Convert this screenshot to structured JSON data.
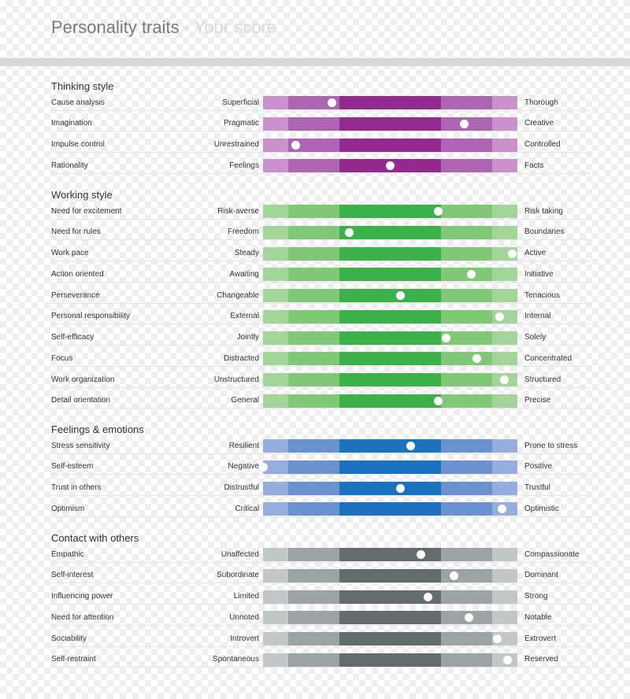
{
  "header": {
    "title": "Personality traits",
    "separator": " - ",
    "subtitle": "Your score"
  },
  "chart_data": {
    "type": "bar",
    "scale_range": [
      0,
      100
    ],
    "band_breaks": [
      0,
      10,
      30,
      70,
      90,
      100
    ],
    "sections": [
      {
        "title": "Thinking style",
        "colors": [
          "#c992cd",
          "#ad64b2",
          "#94298f",
          "#ad64b2",
          "#c992cd"
        ],
        "traits": [
          {
            "name": "Cause analysis",
            "low": "Superficial",
            "high": "Thorough",
            "value": 27
          },
          {
            "name": "Imagination",
            "low": "Pragmatic",
            "high": "Creative",
            "value": 79
          },
          {
            "name": "Impulse control",
            "low": "Unrestrained",
            "high": "Controlled",
            "value": 13
          },
          {
            "name": "Rationality",
            "low": "Feelings",
            "high": "Facts",
            "value": 50
          }
        ]
      },
      {
        "title": "Working style",
        "colors": [
          "#a3d59a",
          "#80c878",
          "#3cb14a",
          "#80c878",
          "#a3d59a"
        ],
        "traits": [
          {
            "name": "Need for excitement",
            "low": "Risk-averse",
            "high": "Risk taking",
            "value": 69
          },
          {
            "name": "Need for rules",
            "low": "Freedom",
            "high": "Boundaries",
            "value": 34
          },
          {
            "name": "Work pace",
            "low": "Steady",
            "high": "Active",
            "value": 98
          },
          {
            "name": "Action oriented",
            "low": "Awaiting",
            "high": "Initiative",
            "value": 82
          },
          {
            "name": "Perseverance",
            "low": "Changeable",
            "high": "Tenacious",
            "value": 54
          },
          {
            "name": "Personal responsibility",
            "low": "External",
            "high": "Internal",
            "value": 93
          },
          {
            "name": "Self-efficacy",
            "low": "Jointly",
            "high": "Solely",
            "value": 72
          },
          {
            "name": "Focus",
            "low": "Distracted",
            "high": "Concentrated",
            "value": 84
          },
          {
            "name": "Work organization",
            "low": "Unstructured",
            "high": "Structured",
            "value": 95
          },
          {
            "name": "Detail orientation",
            "low": "General",
            "high": "Precise",
            "value": 69
          }
        ]
      },
      {
        "title": "Feelings & emotions",
        "colors": [
          "#95aedd",
          "#6a91d0",
          "#1b72bf",
          "#6a91d0",
          "#95aedd"
        ],
        "traits": [
          {
            "name": "Stress sensitivity",
            "low": "Resilient",
            "high": "Prone to stress",
            "value": 58
          },
          {
            "name": "Self-esteem",
            "low": "Negative",
            "high": "Positive",
            "value": 0
          },
          {
            "name": "Trust in others",
            "low": "Distrustful",
            "high": "Trustful",
            "value": 54
          },
          {
            "name": "Optimism",
            "low": "Critical",
            "high": "Optimistic",
            "value": 94
          }
        ]
      },
      {
        "title": "Contact with others",
        "colors": [
          "#c2c7c8",
          "#9ba3a4",
          "#636c6d",
          "#9ba3a4",
          "#c2c7c8"
        ],
        "traits": [
          {
            "name": "Empathic",
            "low": "Unaffected",
            "high": "Compassionate",
            "value": 62
          },
          {
            "name": "Self-interest",
            "low": "Subordinate",
            "high": "Dominant",
            "value": 75
          },
          {
            "name": "Influencing power",
            "low": "Limited",
            "high": "Strong",
            "value": 65
          },
          {
            "name": "Need for attention",
            "low": "Unnoted",
            "high": "Notable",
            "value": 81
          },
          {
            "name": "Sociability",
            "low": "Introvert",
            "high": "Extrovert",
            "value": 92
          },
          {
            "name": "Self-restraint",
            "low": "Spontaneous",
            "high": "Reserved",
            "value": 96
          }
        ]
      }
    ]
  }
}
